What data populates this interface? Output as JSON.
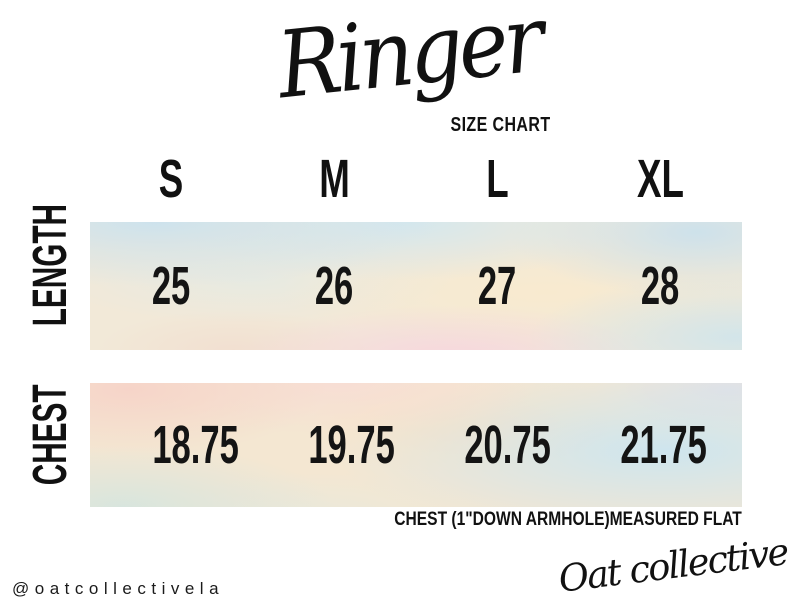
{
  "chart_data": {
    "type": "table",
    "title": "Ringer",
    "subtitle": "SIZE CHART",
    "columns": [
      "S",
      "M",
      "L",
      "XL"
    ],
    "rows": [
      {
        "label": "LENGTH",
        "values": [
          "25",
          "26",
          "27",
          "28"
        ]
      },
      {
        "label": "CHEST",
        "values": [
          "18.75",
          "19.75",
          "20.75",
          "21.75"
        ]
      }
    ],
    "footnote": "CHEST (1\"DOWN ARMHOLE)MEASURED FLAT",
    "layout": {
      "legend_position": "none",
      "grid": "off",
      "row_bands": "watercolor"
    }
  },
  "footer": {
    "handle": "@oatcollectivela",
    "brand_script": "Oat collective"
  },
  "colors": {
    "background": "#ffffff",
    "text": "#111111",
    "band_blue": "#cfe5ee",
    "band_cream": "#f6ecd6",
    "band_pink": "#f6d9de",
    "band_peach": "#f6d8cd",
    "band_teal": "#d8e8e4"
  }
}
